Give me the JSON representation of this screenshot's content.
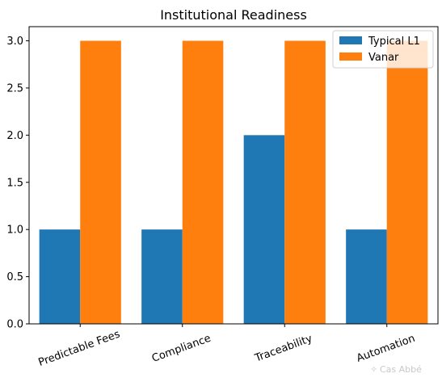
{
  "chart_data": {
    "type": "bar",
    "title": "Institutional Readiness",
    "xlabel": "",
    "ylabel": "",
    "categories": [
      "Predictable Fees",
      "Compliance",
      "Traceability",
      "Automation"
    ],
    "series": [
      {
        "name": "Typical L1",
        "values": [
          1,
          1,
          2,
          1
        ],
        "color": "#1f77b4"
      },
      {
        "name": "Vanar",
        "values": [
          3,
          3,
          3,
          3
        ],
        "color": "#ff7f0e"
      }
    ],
    "ylim": [
      0,
      3.15
    ],
    "yticks": [
      "0.0",
      "0.5",
      "1.0",
      "1.5",
      "2.0",
      "2.5",
      "3.0"
    ],
    "xtick_rotation_deg": -20,
    "grid": false,
    "legend": "top-right"
  },
  "watermark": {
    "text": "Cas Abbé",
    "icon": "sparkle-icon"
  }
}
